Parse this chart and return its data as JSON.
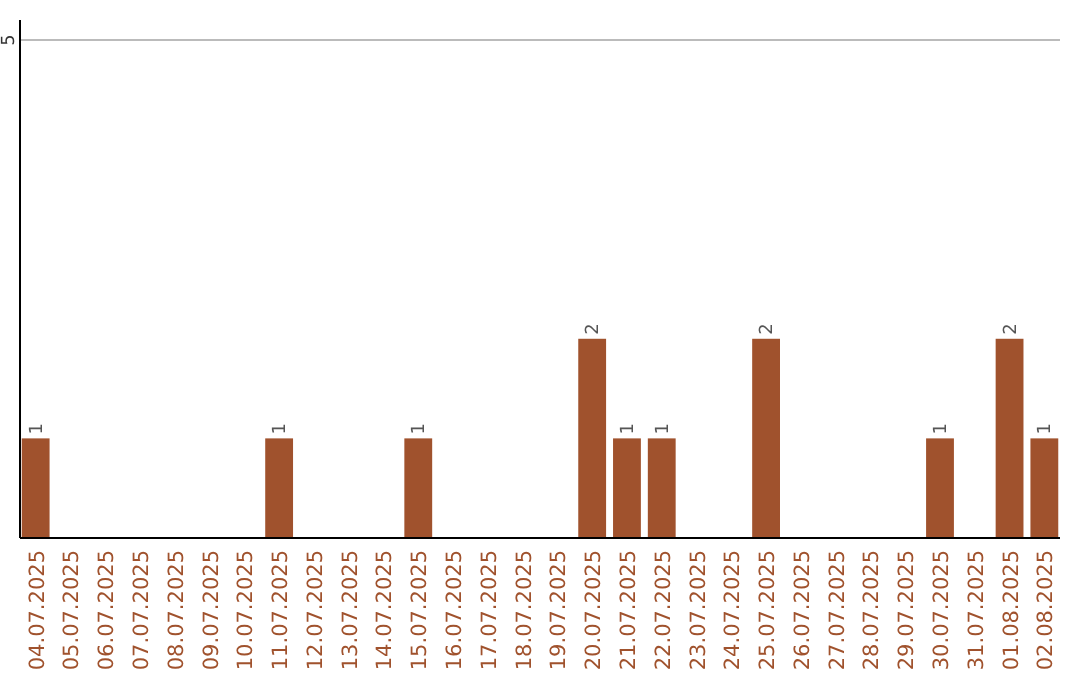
{
  "chart_data": {
    "type": "bar",
    "categories": [
      "04.07.2025",
      "05.07.2025",
      "06.07.2025",
      "07.07.2025",
      "08.07.2025",
      "09.07.2025",
      "10.07.2025",
      "11.07.2025",
      "12.07.2025",
      "13.07.2025",
      "14.07.2025",
      "15.07.2025",
      "16.07.2025",
      "17.07.2025",
      "18.07.2025",
      "19.07.2025",
      "20.07.2025",
      "21.07.2025",
      "22.07.2025",
      "23.07.2025",
      "24.07.2025",
      "25.07.2025",
      "26.07.2025",
      "27.07.2025",
      "28.07.2025",
      "29.07.2025",
      "30.07.2025",
      "31.07.2025",
      "01.08.2025",
      "02.08.2025"
    ],
    "values": [
      1,
      0,
      0,
      0,
      0,
      0,
      0,
      1,
      0,
      0,
      0,
      1,
      0,
      0,
      0,
      0,
      2,
      1,
      1,
      0,
      0,
      2,
      0,
      0,
      0,
      0,
      1,
      0,
      2,
      1
    ],
    "color": "#a0522d",
    "value_labels": [
      "1",
      null,
      null,
      null,
      null,
      null,
      null,
      "1",
      null,
      null,
      null,
      "1",
      null,
      null,
      null,
      null,
      "2",
      "1",
      "1",
      null,
      null,
      "2",
      null,
      null,
      null,
      null,
      "1",
      null,
      "2",
      "1"
    ],
    "ylim": [
      0,
      5.2
    ],
    "yticks": [
      {
        "value": 0,
        "label": null
      },
      5
    ],
    "grid": "y"
  }
}
